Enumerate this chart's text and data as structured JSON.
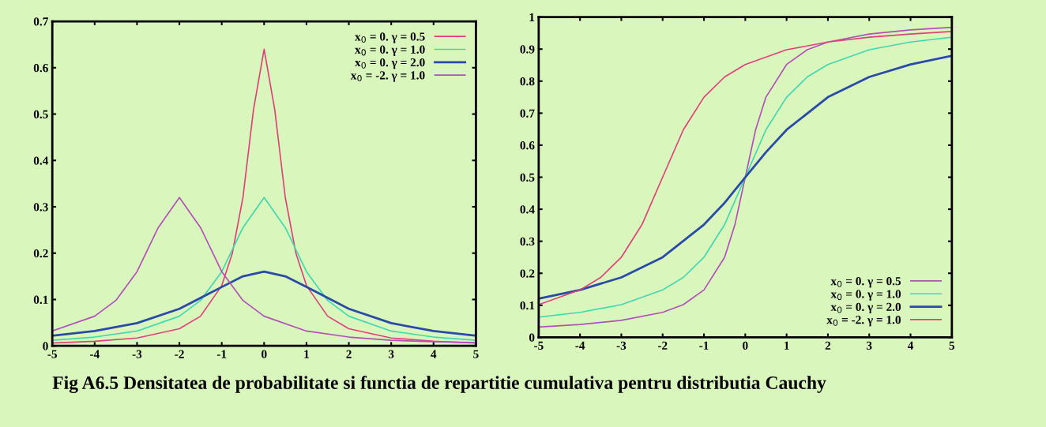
{
  "chart_data": [
    {
      "type": "line",
      "legend": "top right",
      "annotations": [
        "Fig A6.5 Densitatea de probabilitate si functia de repartitie cumulativa pentru distributia Cauchy"
      ],
      "xlim": [
        -5,
        5
      ],
      "xticks": [
        -5,
        -4,
        -3,
        -2,
        -1,
        0,
        1,
        2,
        3,
        4,
        5
      ],
      "ylim": [
        0,
        0.7
      ],
      "yticks": [
        0,
        0.1,
        0.2,
        0.3,
        0.4,
        0.5,
        0.6,
        0.7
      ],
      "series": [
        {
          "name": "x$_{0}$ = 0. γ = 0.5",
          "color": "#e0407a",
          "x": [
            -5,
            -4,
            -3,
            -2,
            -1.5,
            -1,
            -0.75,
            -0.5,
            -0.25,
            0,
            0.25,
            0.5,
            0.75,
            1,
            1.5,
            2,
            3,
            4,
            5
          ],
          "values": [
            0.006,
            0.01,
            0.017,
            0.037,
            0.064,
            0.13,
            0.2,
            0.32,
            0.51,
            0.64,
            0.51,
            0.32,
            0.2,
            0.13,
            0.064,
            0.037,
            0.017,
            0.01,
            0.006
          ]
        },
        {
          "name": "x$_{0}$ = 0. γ = 1.0",
          "color": "#40d8b0",
          "x": [
            -5,
            -4,
            -3,
            -2,
            -1.5,
            -1,
            -0.5,
            0,
            0.5,
            1,
            1.5,
            2,
            3,
            4,
            5
          ],
          "values": [
            0.012,
            0.019,
            0.032,
            0.064,
            0.098,
            0.16,
            0.255,
            0.32,
            0.255,
            0.16,
            0.098,
            0.064,
            0.032,
            0.019,
            0.012
          ]
        },
        {
          "name": "x$_{0}$ = 0. γ = 2.0",
          "color": "#2a4aa8",
          "x": [
            -5,
            -4,
            -3,
            -2,
            -1,
            -0.5,
            0,
            0.5,
            1,
            2,
            3,
            4,
            5
          ],
          "values": [
            0.022,
            0.032,
            0.049,
            0.08,
            0.127,
            0.15,
            0.16,
            0.15,
            0.127,
            0.08,
            0.049,
            0.032,
            0.022
          ]
        },
        {
          "name": "x$_{0}$ = -2. γ = 1.0",
          "color": "#b050b8",
          "x": [
            -5,
            -4,
            -3.5,
            -3,
            -2.5,
            -2,
            -1.5,
            -1,
            -0.5,
            0,
            1,
            2,
            3,
            4,
            5
          ],
          "values": [
            0.032,
            0.064,
            0.098,
            0.16,
            0.255,
            0.32,
            0.255,
            0.16,
            0.098,
            0.064,
            0.032,
            0.019,
            0.012,
            0.009,
            0.007
          ]
        }
      ]
    },
    {
      "type": "line",
      "legend": "bottom right",
      "xlim": [
        -5,
        5
      ],
      "xticks": [
        -5,
        -4,
        -3,
        -2,
        -1,
        0,
        1,
        2,
        3,
        4,
        5
      ],
      "ylim": [
        0,
        1
      ],
      "yticks": [
        0,
        0.1,
        0.2,
        0.3,
        0.4,
        0.5,
        0.6,
        0.7,
        0.8,
        0.9,
        1
      ],
      "series": [
        {
          "name": "x$_{0}$ = 0. γ = 0.5",
          "color": "#b050b8",
          "x": [
            -5,
            -4,
            -3,
            -2,
            -1.5,
            -1,
            -0.5,
            -0.25,
            0,
            0.25,
            0.5,
            1,
            1.5,
            2,
            3,
            4,
            5
          ],
          "values": [
            0.032,
            0.04,
            0.053,
            0.078,
            0.102,
            0.148,
            0.25,
            0.352,
            0.5,
            0.648,
            0.75,
            0.852,
            0.898,
            0.922,
            0.947,
            0.96,
            0.968
          ]
        },
        {
          "name": "x$_{0}$ = 0. γ = 1.0",
          "color": "#40d8b0",
          "x": [
            -5,
            -4,
            -3,
            -2,
            -1.5,
            -1,
            -0.5,
            0,
            0.5,
            1,
            1.5,
            2,
            3,
            4,
            5
          ],
          "values": [
            0.063,
            0.078,
            0.102,
            0.148,
            0.187,
            0.25,
            0.352,
            0.5,
            0.648,
            0.75,
            0.813,
            0.852,
            0.898,
            0.922,
            0.937
          ]
        },
        {
          "name": "x$_{0}$ = 0. γ = 2.0",
          "color": "#2a4aa8",
          "x": [
            -5,
            -4,
            -3,
            -2,
            -1,
            -0.5,
            0,
            0.5,
            1,
            2,
            3,
            4,
            5
          ],
          "values": [
            0.121,
            0.148,
            0.187,
            0.25,
            0.352,
            0.42,
            0.5,
            0.578,
            0.648,
            0.75,
            0.813,
            0.852,
            0.879
          ]
        },
        {
          "name": "x$_{0}$ = -2. γ = 1.0",
          "color": "#e0407a",
          "x": [
            -5,
            -4,
            -3.5,
            -3,
            -2.5,
            -2,
            -1.5,
            -1,
            -0.5,
            0,
            1,
            2,
            3,
            4,
            5
          ],
          "values": [
            0.102,
            0.148,
            0.187,
            0.25,
            0.352,
            0.5,
            0.648,
            0.75,
            0.813,
            0.852,
            0.898,
            0.922,
            0.937,
            0.947,
            0.955
          ]
        }
      ]
    }
  ]
}
